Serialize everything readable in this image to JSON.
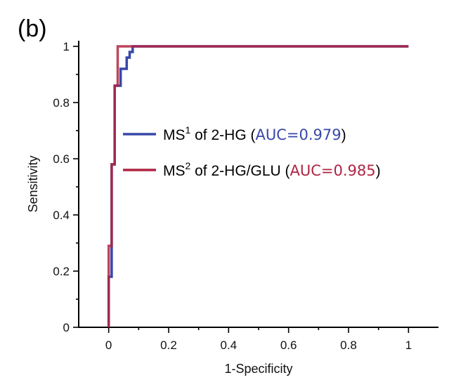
{
  "panel_label": "(b)",
  "chart_data": {
    "type": "line",
    "xlabel": "1-Specificity",
    "ylabel": "Sensitivity",
    "xlim": [
      -0.1,
      1.1
    ],
    "ylim": [
      0,
      1.02
    ],
    "xticks": [
      0,
      0.2,
      0.4,
      0.6,
      0.8,
      1
    ],
    "xtick_labels": [
      "0",
      "0.2",
      "0.4",
      "0.6",
      "0.8",
      "1"
    ],
    "yticks": [
      0,
      0.2,
      0.4,
      0.6,
      0.8,
      1
    ],
    "ytick_labels": [
      "0",
      "0.2",
      "0.4",
      "0.6",
      "0.8",
      "1"
    ],
    "grid": false,
    "legend_position": "center-right",
    "series": [
      {
        "name": "MS¹ of 2-HG (AUC=0.979)",
        "label_parts": [
          "MS",
          "1",
          " of 2-HG (",
          "AUC=0.979",
          ")"
        ],
        "color": "#3848a8",
        "x": [
          0,
          0,
          0.01,
          0.01,
          0.02,
          0.02,
          0.03,
          0.03,
          0.04,
          0.04,
          0.06,
          0.06,
          0.07,
          0.07,
          0.08,
          0.08,
          1
        ],
        "y": [
          0,
          0.18,
          0.18,
          0.58,
          0.58,
          0.86,
          0.86,
          0.86,
          0.86,
          0.92,
          0.92,
          0.96,
          0.96,
          0.98,
          0.98,
          1,
          1
        ]
      },
      {
        "name": "MS² of 2-HG/GLU (AUC=0.985)",
        "label_parts": [
          "MS",
          "2",
          " of 2-HG/GLU (",
          "AUC=0.985",
          ")"
        ],
        "color": "#b02442",
        "x": [
          0,
          0,
          0.01,
          0.01,
          0.02,
          0.02,
          0.03,
          0.03,
          1
        ],
        "y": [
          0,
          0.29,
          0.29,
          0.58,
          0.58,
          0.86,
          0.86,
          1,
          1
        ]
      }
    ]
  }
}
